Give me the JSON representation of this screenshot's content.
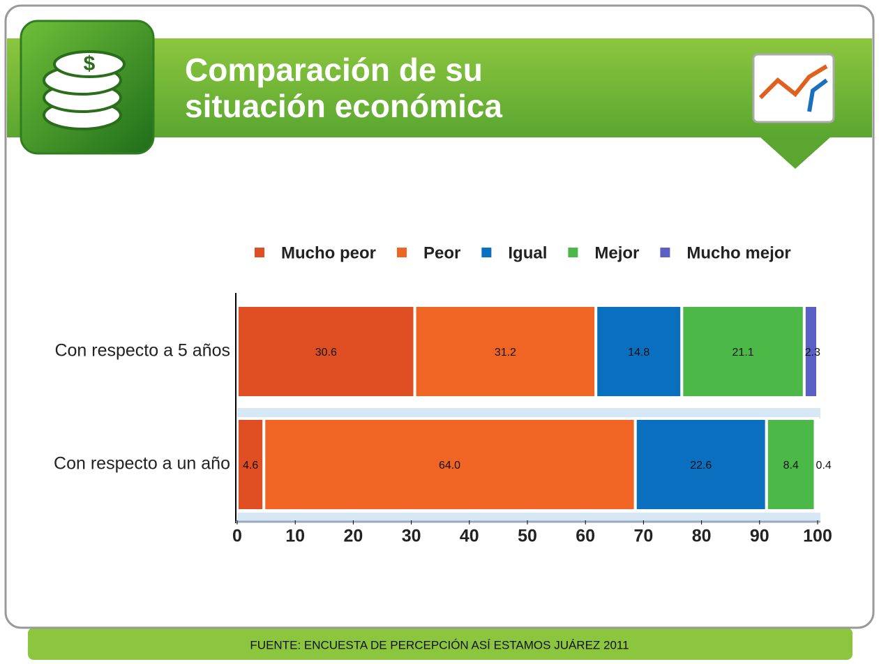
{
  "chart_data": {
    "type": "stacked-barh",
    "title": "Comparación de su situación económica",
    "categories": [
      "Con respecto a 5 años",
      "Con respecto a un año"
    ],
    "series": [
      {
        "name": "Mucho peor",
        "color": "#e04e23",
        "values": [
          30.6,
          4.6
        ]
      },
      {
        "name": "Peor",
        "color": "#f06424",
        "values": [
          31.2,
          64.0
        ],
        "value_labels": [
          "31.2",
          "64.0"
        ]
      },
      {
        "name": "Igual",
        "color": "#0a6fbe",
        "values": [
          14.8,
          22.6
        ]
      },
      {
        "name": "Mejor",
        "color": "#4cb848",
        "values": [
          21.1,
          8.4
        ]
      },
      {
        "name": "Mucho mejor",
        "color": "#5a5fc4",
        "values": [
          2.3,
          0.4
        ]
      }
    ],
    "xlim": [
      0,
      100
    ],
    "xticks": [
      0,
      10,
      20,
      30,
      40,
      50,
      60,
      70,
      80,
      90,
      100
    ],
    "legend": "top"
  },
  "footer": "FUENTE: ENCUESTA DE PERCEPCIÓN ASÍ ESTAMOS JUÁREZ 2011"
}
